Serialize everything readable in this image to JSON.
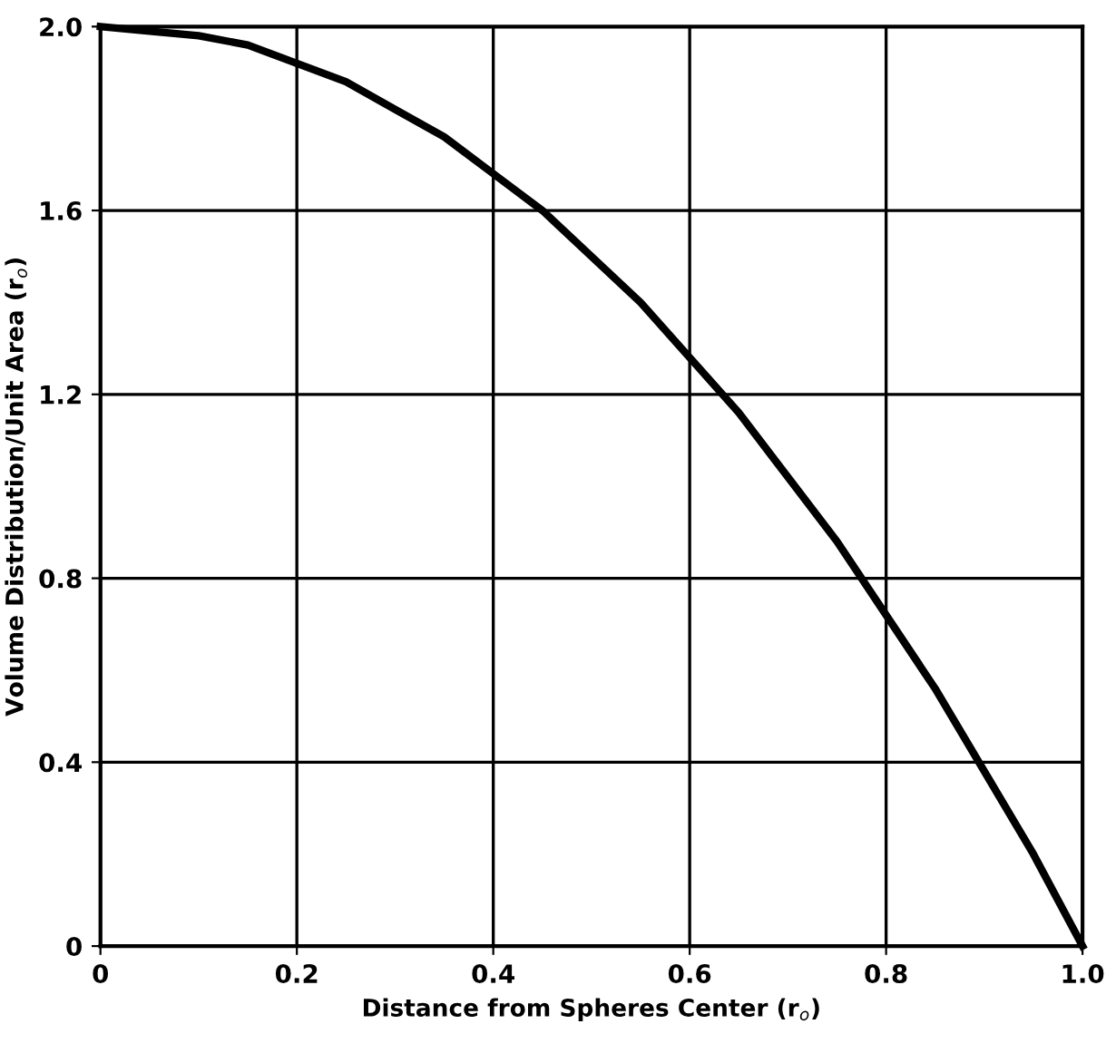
{
  "chart_data": {
    "type": "line",
    "xlabel": "Distance from Spheres Center (r$_{o}$)",
    "ylabel": "Volume Distribution/Unit Area (r$_{o}$)",
    "x": [
      0,
      0.05,
      0.1,
      0.15,
      0.2,
      0.25,
      0.3,
      0.35,
      0.4,
      0.45,
      0.5,
      0.55,
      0.6,
      0.65,
      0.7,
      0.75,
      0.8,
      0.85,
      0.9,
      0.95,
      1.0
    ],
    "series": [
      {
        "color": "#000000",
        "values": [
          2.0,
          1.99,
          1.98,
          1.96,
          1.92,
          1.88,
          1.82,
          1.76,
          1.68,
          1.6,
          1.5,
          1.4,
          1.28,
          1.16,
          1.02,
          0.88,
          0.72,
          0.56,
          0.38,
          0.2,
          0.0
        ]
      }
    ],
    "xlim": [
      0,
      1.0
    ],
    "ylim": [
      0,
      2.0
    ],
    "xticks": [
      0,
      0.2,
      0.4,
      0.6,
      0.8,
      {
        "value": 1.0,
        "label": "1.0"
      }
    ],
    "yticks": [
      0,
      0.4,
      0.8,
      1.2,
      1.6,
      {
        "value": 2.0,
        "label": "2.0"
      }
    ],
    "grid": true,
    "marker": "none",
    "line_style": "solid",
    "legend": false
  }
}
